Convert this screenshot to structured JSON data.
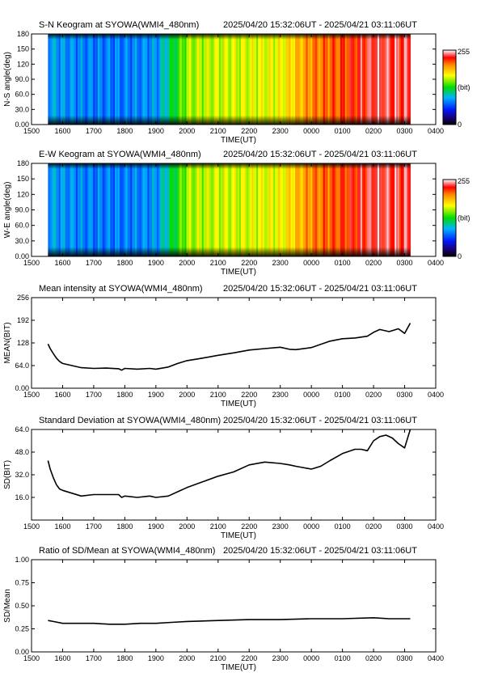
{
  "chart_data": [
    {
      "type": "heatmap",
      "title": "S-N Keogram at SYOWA(WMI4_480nm)",
      "time_range": "2025/04/20 15:32:06UT - 2025/04/21 03:11:06UT",
      "xlabel": "TIME(UT)",
      "ylabel": "N-S angle(deg)",
      "x_ticks": [
        "1500",
        "1600",
        "1700",
        "1800",
        "1900",
        "2000",
        "2100",
        "2200",
        "2300",
        "0000",
        "0100",
        "0200",
        "0300",
        "0400"
      ],
      "y_ticks": [
        "0.00",
        "30.0",
        "60.0",
        "90.0",
        "120",
        "150",
        "180"
      ],
      "ylim": [
        0,
        180
      ],
      "colorbar": {
        "min": "0",
        "max": "255",
        "unit": "(bit)"
      },
      "intensity_by_hour": [
        [
          15.53,
          0.35
        ],
        [
          16,
          0.33
        ],
        [
          17,
          0.3
        ],
        [
          18,
          0.3
        ],
        [
          19,
          0.33
        ],
        [
          20,
          0.6
        ],
        [
          21,
          0.63
        ],
        [
          22,
          0.64
        ],
        [
          23,
          0.66
        ],
        [
          24,
          0.8
        ],
        [
          25,
          0.85
        ],
        [
          26,
          0.93
        ],
        [
          27,
          0.92
        ],
        [
          27.18,
          0.95
        ]
      ]
    },
    {
      "type": "heatmap",
      "title": "E-W Keogram at SYOWA(WMI4_480nm)",
      "time_range": "2025/04/20 15:32:06UT - 2025/04/21 03:11:06UT",
      "xlabel": "TIME(UT)",
      "ylabel": "W-E angle(deg)",
      "x_ticks": [
        "1500",
        "1600",
        "1700",
        "1800",
        "1900",
        "2000",
        "2100",
        "2200",
        "2300",
        "0000",
        "0100",
        "0200",
        "0300",
        "0400"
      ],
      "y_ticks": [
        "0.00",
        "30.0",
        "60.0",
        "90.0",
        "120",
        "150",
        "180"
      ],
      "ylim": [
        0,
        180
      ],
      "colorbar": {
        "min": "0",
        "max": "255",
        "unit": "(bit)"
      },
      "intensity_by_hour": [
        [
          15.53,
          0.35
        ],
        [
          16,
          0.33
        ],
        [
          17,
          0.3
        ],
        [
          18,
          0.3
        ],
        [
          19,
          0.33
        ],
        [
          20,
          0.6
        ],
        [
          21,
          0.63
        ],
        [
          22,
          0.64
        ],
        [
          23,
          0.66
        ],
        [
          24,
          0.8
        ],
        [
          25,
          0.86
        ],
        [
          26,
          0.93
        ],
        [
          27,
          0.92
        ],
        [
          27.18,
          0.95
        ]
      ]
    },
    {
      "type": "line",
      "title": "Mean intensity at SYOWA(WMI4_480nm)",
      "time_range": "2025/04/20 15:32:06UT - 2025/04/21 03:11:06UT",
      "xlabel": "TIME(UT)",
      "ylabel": "MEAN(BIT)",
      "x_ticks": [
        "1500",
        "1600",
        "1700",
        "1800",
        "1900",
        "2000",
        "2100",
        "2200",
        "2300",
        "0000",
        "0100",
        "0200",
        "0300",
        "0400"
      ],
      "y_ticks": [
        "0.00",
        "64.0",
        "128",
        "192",
        "256"
      ],
      "ylim": [
        0,
        256
      ],
      "x": [
        15.53,
        15.6,
        15.7,
        15.8,
        15.9,
        16.0,
        16.3,
        16.6,
        17.0,
        17.4,
        17.8,
        17.9,
        18.0,
        18.4,
        18.8,
        19.0,
        19.4,
        19.7,
        20.0,
        20.5,
        21.0,
        21.5,
        22.0,
        22.5,
        23.0,
        23.3,
        23.5,
        24.0,
        24.3,
        24.6,
        25.0,
        25.4,
        25.8,
        26.0,
        26.2,
        26.5,
        26.8,
        27.0,
        27.18
      ],
      "series": [
        {
          "values": [
            125,
            112,
            98,
            85,
            76,
            70,
            64,
            58,
            56,
            57,
            55,
            51,
            56,
            54,
            56,
            54,
            60,
            70,
            78,
            85,
            93,
            100,
            108,
            112,
            116,
            110,
            109,
            115,
            124,
            133,
            140,
            142,
            147,
            158,
            166,
            160,
            168,
            155,
            184
          ]
        }
      ]
    },
    {
      "type": "line",
      "title": "Standard Deviation at SYOWA(WMI4_480nm)",
      "time_range": "2025/04/20 15:32:06UT - 2025/04/21 03:11:06UT",
      "xlabel": "TIME(UT)",
      "ylabel": "SD(BIT)",
      "x_ticks": [
        "1500",
        "1600",
        "1700",
        "1800",
        "1900",
        "2000",
        "2100",
        "2200",
        "2300",
        "0000",
        "0100",
        "0200",
        "0300",
        "0400"
      ],
      "y_ticks": [
        "16.0",
        "32.0",
        "48.0",
        "64.0"
      ],
      "ylim": [
        0,
        64
      ],
      "x": [
        15.53,
        15.6,
        15.7,
        15.8,
        15.9,
        16.0,
        16.3,
        16.6,
        17.0,
        17.4,
        17.8,
        17.9,
        18.0,
        18.4,
        18.8,
        19.0,
        19.4,
        19.7,
        20.0,
        20.5,
        21.0,
        21.5,
        22.0,
        22.5,
        23.0,
        23.3,
        23.5,
        24.0,
        24.3,
        24.6,
        25.0,
        25.4,
        25.6,
        25.8,
        26.0,
        26.2,
        26.4,
        26.6,
        26.8,
        27.0,
        27.18
      ],
      "series": [
        {
          "values": [
            42,
            36,
            30,
            25,
            22,
            21,
            19,
            17,
            18,
            18,
            18,
            16,
            17,
            16,
            17,
            16,
            17,
            20,
            23,
            27,
            31,
            34,
            39,
            41,
            40,
            39,
            38,
            36,
            38,
            42,
            47,
            50,
            50,
            49,
            56,
            59,
            60,
            58,
            54,
            51,
            64
          ]
        }
      ]
    },
    {
      "type": "line",
      "title": "Ratio of SD/Mean at SYOWA(WMI4_480nm)",
      "time_range": "2025/04/20 15:32:06UT - 2025/04/21 03:11:06UT",
      "xlabel": "TIME(UT)",
      "ylabel": "SD/Mean",
      "x_ticks": [
        "1500",
        "1600",
        "1700",
        "1800",
        "1900",
        "2000",
        "2100",
        "2200",
        "2300",
        "0000",
        "0100",
        "0200",
        "0300",
        "0400"
      ],
      "y_ticks": [
        "0.00",
        "0.25",
        "0.50",
        "0.75",
        "1.00"
      ],
      "ylim": [
        0,
        1
      ],
      "x": [
        15.53,
        15.7,
        16.0,
        16.5,
        17.0,
        17.5,
        18.0,
        18.5,
        19.0,
        19.5,
        20.0,
        21.0,
        22.0,
        23.0,
        24.0,
        25.0,
        26.0,
        26.5,
        27.0,
        27.18
      ],
      "series": [
        {
          "values": [
            0.34,
            0.33,
            0.31,
            0.31,
            0.31,
            0.3,
            0.3,
            0.31,
            0.31,
            0.32,
            0.33,
            0.34,
            0.35,
            0.35,
            0.36,
            0.36,
            0.37,
            0.36,
            0.36,
            0.36
          ]
        }
      ]
    }
  ]
}
